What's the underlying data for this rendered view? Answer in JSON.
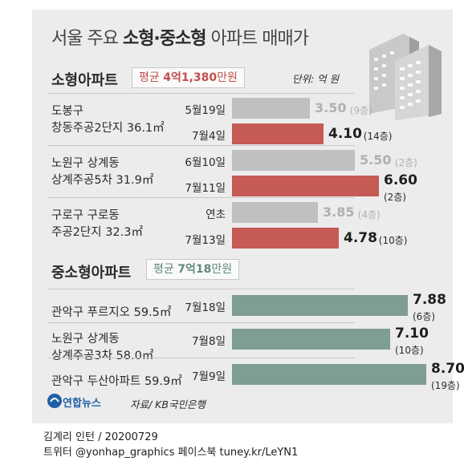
{
  "title": {
    "part1": "서울 주요 ",
    "bold": "소형·중소형",
    "part2": " 아파트 매매가"
  },
  "small_section": {
    "title": "소형아파트",
    "avg_prefix": "평균 ",
    "avg_value": "4억1,380",
    "avg_suffix": "만원",
    "unit": "단위: 억 원"
  },
  "mid_section": {
    "title": "중소형아파트",
    "avg_prefix": "평균 ",
    "avg_value": "7억18",
    "avg_suffix": "만원"
  },
  "source": "자료/ KB국민은행",
  "logo_text": "연합뉴스",
  "footer": {
    "line1": "김계리 인턴 / 20200729",
    "line2": "트위터 @yonhap_graphics 페이스북 tuney.kr/LeYN1"
  },
  "colors": {
    "previous": "#c0c0c0",
    "recent": "#c65a54",
    "mid": "#7f9e93",
    "background": "#ececec"
  },
  "chart_data": [
    {
      "type": "bar",
      "orientation": "horizontal",
      "title": "소형아파트",
      "unit": "억 원",
      "groups": [
        {
          "label_line1": "도봉구",
          "label_line2": "창동주공2단지 36.1㎡",
          "rows": [
            {
              "date": "5월19일",
              "value": 3.5,
              "value_label": "3.50",
              "floor": "(9층)",
              "kind": "previous"
            },
            {
              "date": "7월4일",
              "value": 4.1,
              "value_label": "4.10",
              "floor": "(14층)",
              "kind": "recent"
            }
          ]
        },
        {
          "label_line1": "노원구 상계동",
          "label_line2": "상계주공5차 31.9㎡",
          "rows": [
            {
              "date": "6월10일",
              "value": 5.5,
              "value_label": "5.50",
              "floor": "(2층)",
              "kind": "previous"
            },
            {
              "date": "7월11일",
              "value": 6.6,
              "value_label": "6.60",
              "floor": "(2층)",
              "kind": "recent"
            }
          ]
        },
        {
          "label_line1": "구로구 구로동",
          "label_line2": "주공2단지 32.3㎡",
          "rows": [
            {
              "date": "연초",
              "value": 3.85,
              "value_label": "3.85",
              "floor": "(4층)",
              "kind": "previous"
            },
            {
              "date": "7월13일",
              "value": 4.78,
              "value_label": "4.78",
              "floor": "(10층)",
              "kind": "recent"
            }
          ]
        }
      ]
    },
    {
      "type": "bar",
      "orientation": "horizontal",
      "title": "중소형아파트",
      "unit": "억 원",
      "groups": [
        {
          "label_line1": "관악구 푸르지오 59.5㎡",
          "label_line2": "",
          "rows": [
            {
              "date": "7월18일",
              "value": 7.88,
              "value_label": "7.88",
              "floor": "(6층)",
              "kind": "mid"
            }
          ]
        },
        {
          "label_line1": "노원구 상계동",
          "label_line2": "상계주공3차 58.0㎡",
          "rows": [
            {
              "date": "7월8일",
              "value": 7.1,
              "value_label": "7.10",
              "floor": "(10층)",
              "kind": "mid"
            }
          ]
        },
        {
          "label_line1": "관악구 두산아파트 59.9㎡",
          "label_line2": "",
          "rows": [
            {
              "date": "7월9일",
              "value": 8.7,
              "value_label": "8.70",
              "floor": "(19층)",
              "kind": "mid"
            }
          ]
        }
      ]
    }
  ]
}
